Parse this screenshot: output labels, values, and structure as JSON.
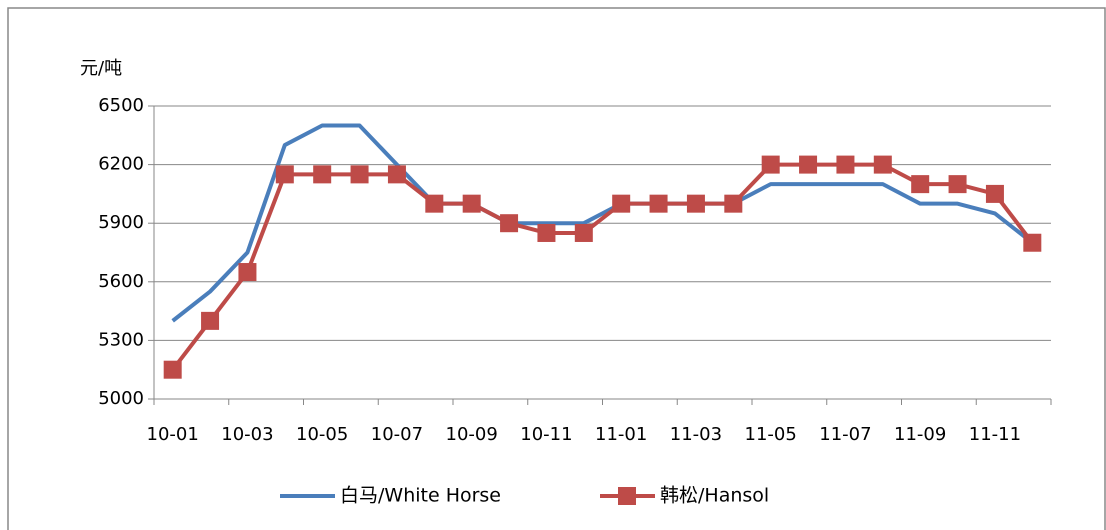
{
  "chart_data": {
    "type": "line",
    "y_label": "元/吨",
    "categories": [
      "10-01",
      null,
      "10-03",
      null,
      "10-05",
      null,
      "10-07",
      null,
      "10-09",
      null,
      "10-11",
      null,
      "11-01",
      null,
      "11-03",
      null,
      "11-05",
      null,
      "11-07",
      null,
      "11-09",
      null,
      "11-11",
      null
    ],
    "series": [
      {
        "name": "白马/White Horse",
        "color": "#4a7ebb",
        "marker": "none",
        "values": [
          5400,
          5550,
          5750,
          6300,
          6400,
          6400,
          6200,
          6000,
          6000,
          5900,
          5900,
          5900,
          6000,
          6000,
          6000,
          6000,
          6100,
          6100,
          6100,
          6100,
          6000,
          6000,
          5950,
          5800
        ]
      },
      {
        "name": "韩松/Hansol",
        "color": "#be4b48",
        "marker": "square",
        "values": [
          5150,
          5400,
          5650,
          6150,
          6150,
          6150,
          6150,
          6000,
          6000,
          5900,
          5850,
          5850,
          6000,
          6000,
          6000,
          6000,
          6200,
          6200,
          6200,
          6200,
          6100,
          6100,
          6050,
          5800
        ]
      }
    ],
    "ylim": [
      5000,
      6500
    ],
    "yticks": [
      5000,
      5300,
      5600,
      5900,
      6200,
      6500
    ],
    "grid": true,
    "legend": "bottom"
  }
}
